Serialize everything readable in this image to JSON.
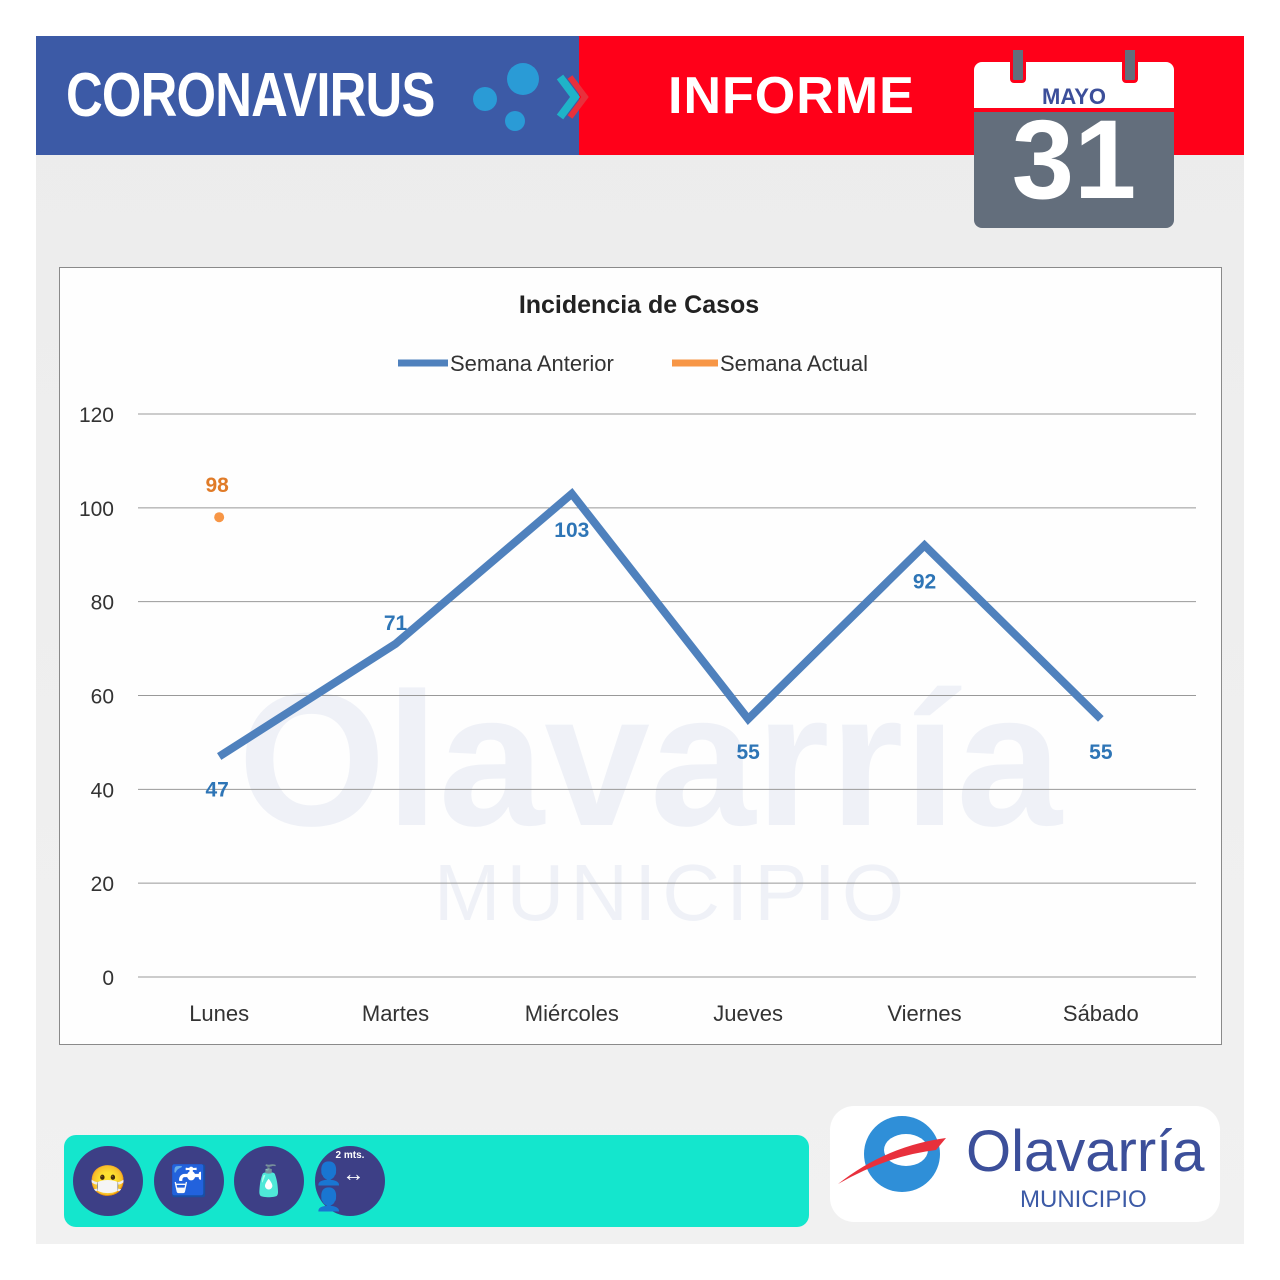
{
  "header": {
    "title": "CORONAVIRUS",
    "subtitle": "INFORME",
    "calendar": {
      "month": "MAYO",
      "day": "31"
    }
  },
  "colors": {
    "blue_header": "#3c5aa6",
    "red_header": "#ff0019",
    "series_prev": "#4f81bd",
    "series_curr": "#f79646",
    "teal_bar": "#14e6cd"
  },
  "footer": {
    "icons": [
      "mask-icon",
      "hand-washing-icon",
      "sanitizer-spray-icon",
      "social-distance-icon"
    ],
    "distance_label": "2 mts.",
    "logo": {
      "name": "Olavarría",
      "sub": "MUNICIPIO"
    }
  },
  "chart_data": {
    "type": "line",
    "title": "Incidencia de Casos",
    "categories": [
      "Lunes",
      "Martes",
      "Miércoles",
      "Jueves",
      "Viernes",
      "Sábado"
    ],
    "series": [
      {
        "name": "Semana Anterior",
        "values": [
          47,
          71,
          103,
          55,
          92,
          55
        ],
        "color": "#4f81bd"
      },
      {
        "name": "Semana Actual",
        "values": [
          98,
          null,
          null,
          null,
          null,
          null
        ],
        "color": "#f79646"
      }
    ],
    "ylim": [
      0,
      120
    ],
    "yticks": [
      0,
      20,
      40,
      60,
      80,
      100,
      120
    ],
    "grid": true,
    "legend": "top",
    "watermark": {
      "text": "Olavarría",
      "sub": "MUNICIPIO"
    }
  }
}
